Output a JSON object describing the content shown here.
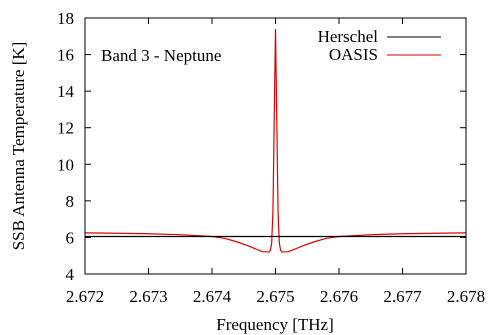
{
  "chart_data": {
    "type": "line",
    "title": "",
    "annotation": "Band 3 - Neptune",
    "xlabel": "Frequency [THz]",
    "ylabel": "SSB Antenna Temperature [K]",
    "xlim": [
      2.672,
      2.678
    ],
    "ylim": [
      4,
      18
    ],
    "xticks": [
      "2.672",
      "2.673",
      "2.674",
      "2.675",
      "2.676",
      "2.677",
      "2.678"
    ],
    "yticks": [
      "4",
      "6",
      "8",
      "10",
      "12",
      "14",
      "16",
      "18"
    ],
    "grid": false,
    "legend_position": "top-right",
    "series": [
      {
        "name": "Herschel",
        "color": "#000000",
        "x": [
          2.672,
          2.678
        ],
        "y": [
          6.05,
          6.05
        ]
      },
      {
        "name": "OASIS",
        "color": "#e00000",
        "x": [
          2.672,
          2.6725,
          2.673,
          2.6735,
          2.674,
          2.6742,
          2.6744,
          2.6746,
          2.6747,
          2.6748,
          2.6749,
          2.67492,
          2.67494,
          2.67496,
          2.67498,
          2.675,
          2.67502,
          2.67504,
          2.67506,
          2.67508,
          2.6751,
          2.6752,
          2.6753,
          2.6754,
          2.6756,
          2.6758,
          2.676,
          2.6765,
          2.677,
          2.6775,
          2.678
        ],
        "y": [
          6.25,
          6.23,
          6.2,
          6.15,
          6.05,
          5.95,
          5.75,
          5.5,
          5.35,
          5.22,
          5.2,
          5.3,
          5.7,
          7.5,
          12.5,
          17.4,
          12.5,
          7.5,
          5.7,
          5.3,
          5.2,
          5.22,
          5.35,
          5.5,
          5.75,
          5.95,
          6.05,
          6.15,
          6.2,
          6.23,
          6.25
        ]
      }
    ]
  }
}
